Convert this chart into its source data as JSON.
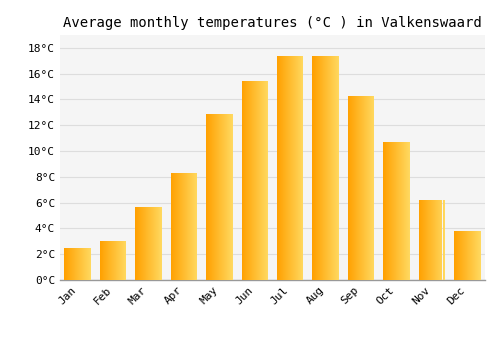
{
  "title": "Average monthly temperatures (°C ) in Valkenswaard",
  "months": [
    "Jan",
    "Feb",
    "Mar",
    "Apr",
    "May",
    "Jun",
    "Jul",
    "Aug",
    "Sep",
    "Oct",
    "Nov",
    "Dec"
  ],
  "values": [
    2.5,
    3.0,
    5.7,
    8.3,
    12.9,
    15.4,
    17.4,
    17.4,
    14.3,
    10.7,
    6.2,
    3.8
  ],
  "bar_color_left": "#FFA500",
  "bar_color_right": "#FFD966",
  "background_color": "#FFFFFF",
  "plot_bg_color": "#F5F5F5",
  "grid_color": "#DDDDDD",
  "ylim": [
    0,
    19
  ],
  "yticks": [
    0,
    2,
    4,
    6,
    8,
    10,
    12,
    14,
    16,
    18
  ],
  "ytick_labels": [
    "0°C",
    "2°C",
    "4°C",
    "6°C",
    "8°C",
    "10°C",
    "12°C",
    "14°C",
    "16°C",
    "18°C"
  ],
  "title_fontsize": 10,
  "tick_fontsize": 8,
  "font_family": "monospace",
  "bar_width": 0.75
}
